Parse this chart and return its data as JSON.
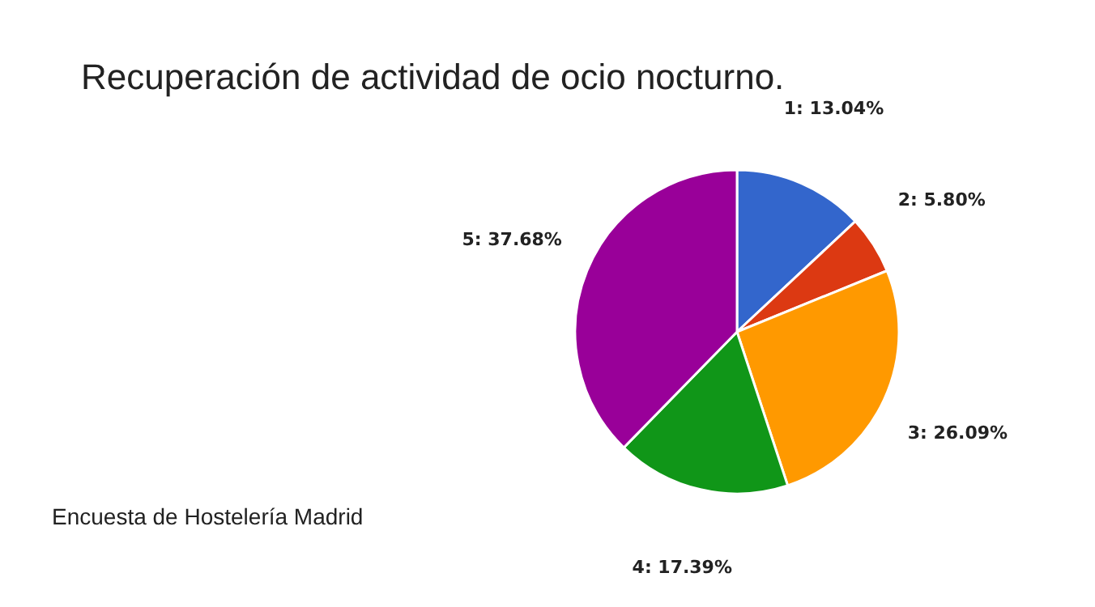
{
  "chart_data": {
    "type": "pie",
    "title": "Recuperación de actividad de ocio nocturno.",
    "categories": [
      "1",
      "2",
      "3",
      "4",
      "5"
    ],
    "values": [
      13.04,
      5.8,
      26.09,
      17.39,
      37.68
    ],
    "colors": [
      "#3366cc",
      "#dc3912",
      "#ff9900",
      "#109618",
      "#990099"
    ],
    "value_labels": [
      "13.04%",
      "5.80%",
      "26.09%",
      "17.39%",
      "37.68%"
    ],
    "legend": false,
    "annotations": [
      "Encuesta de Hostelería Madrid"
    ]
  }
}
